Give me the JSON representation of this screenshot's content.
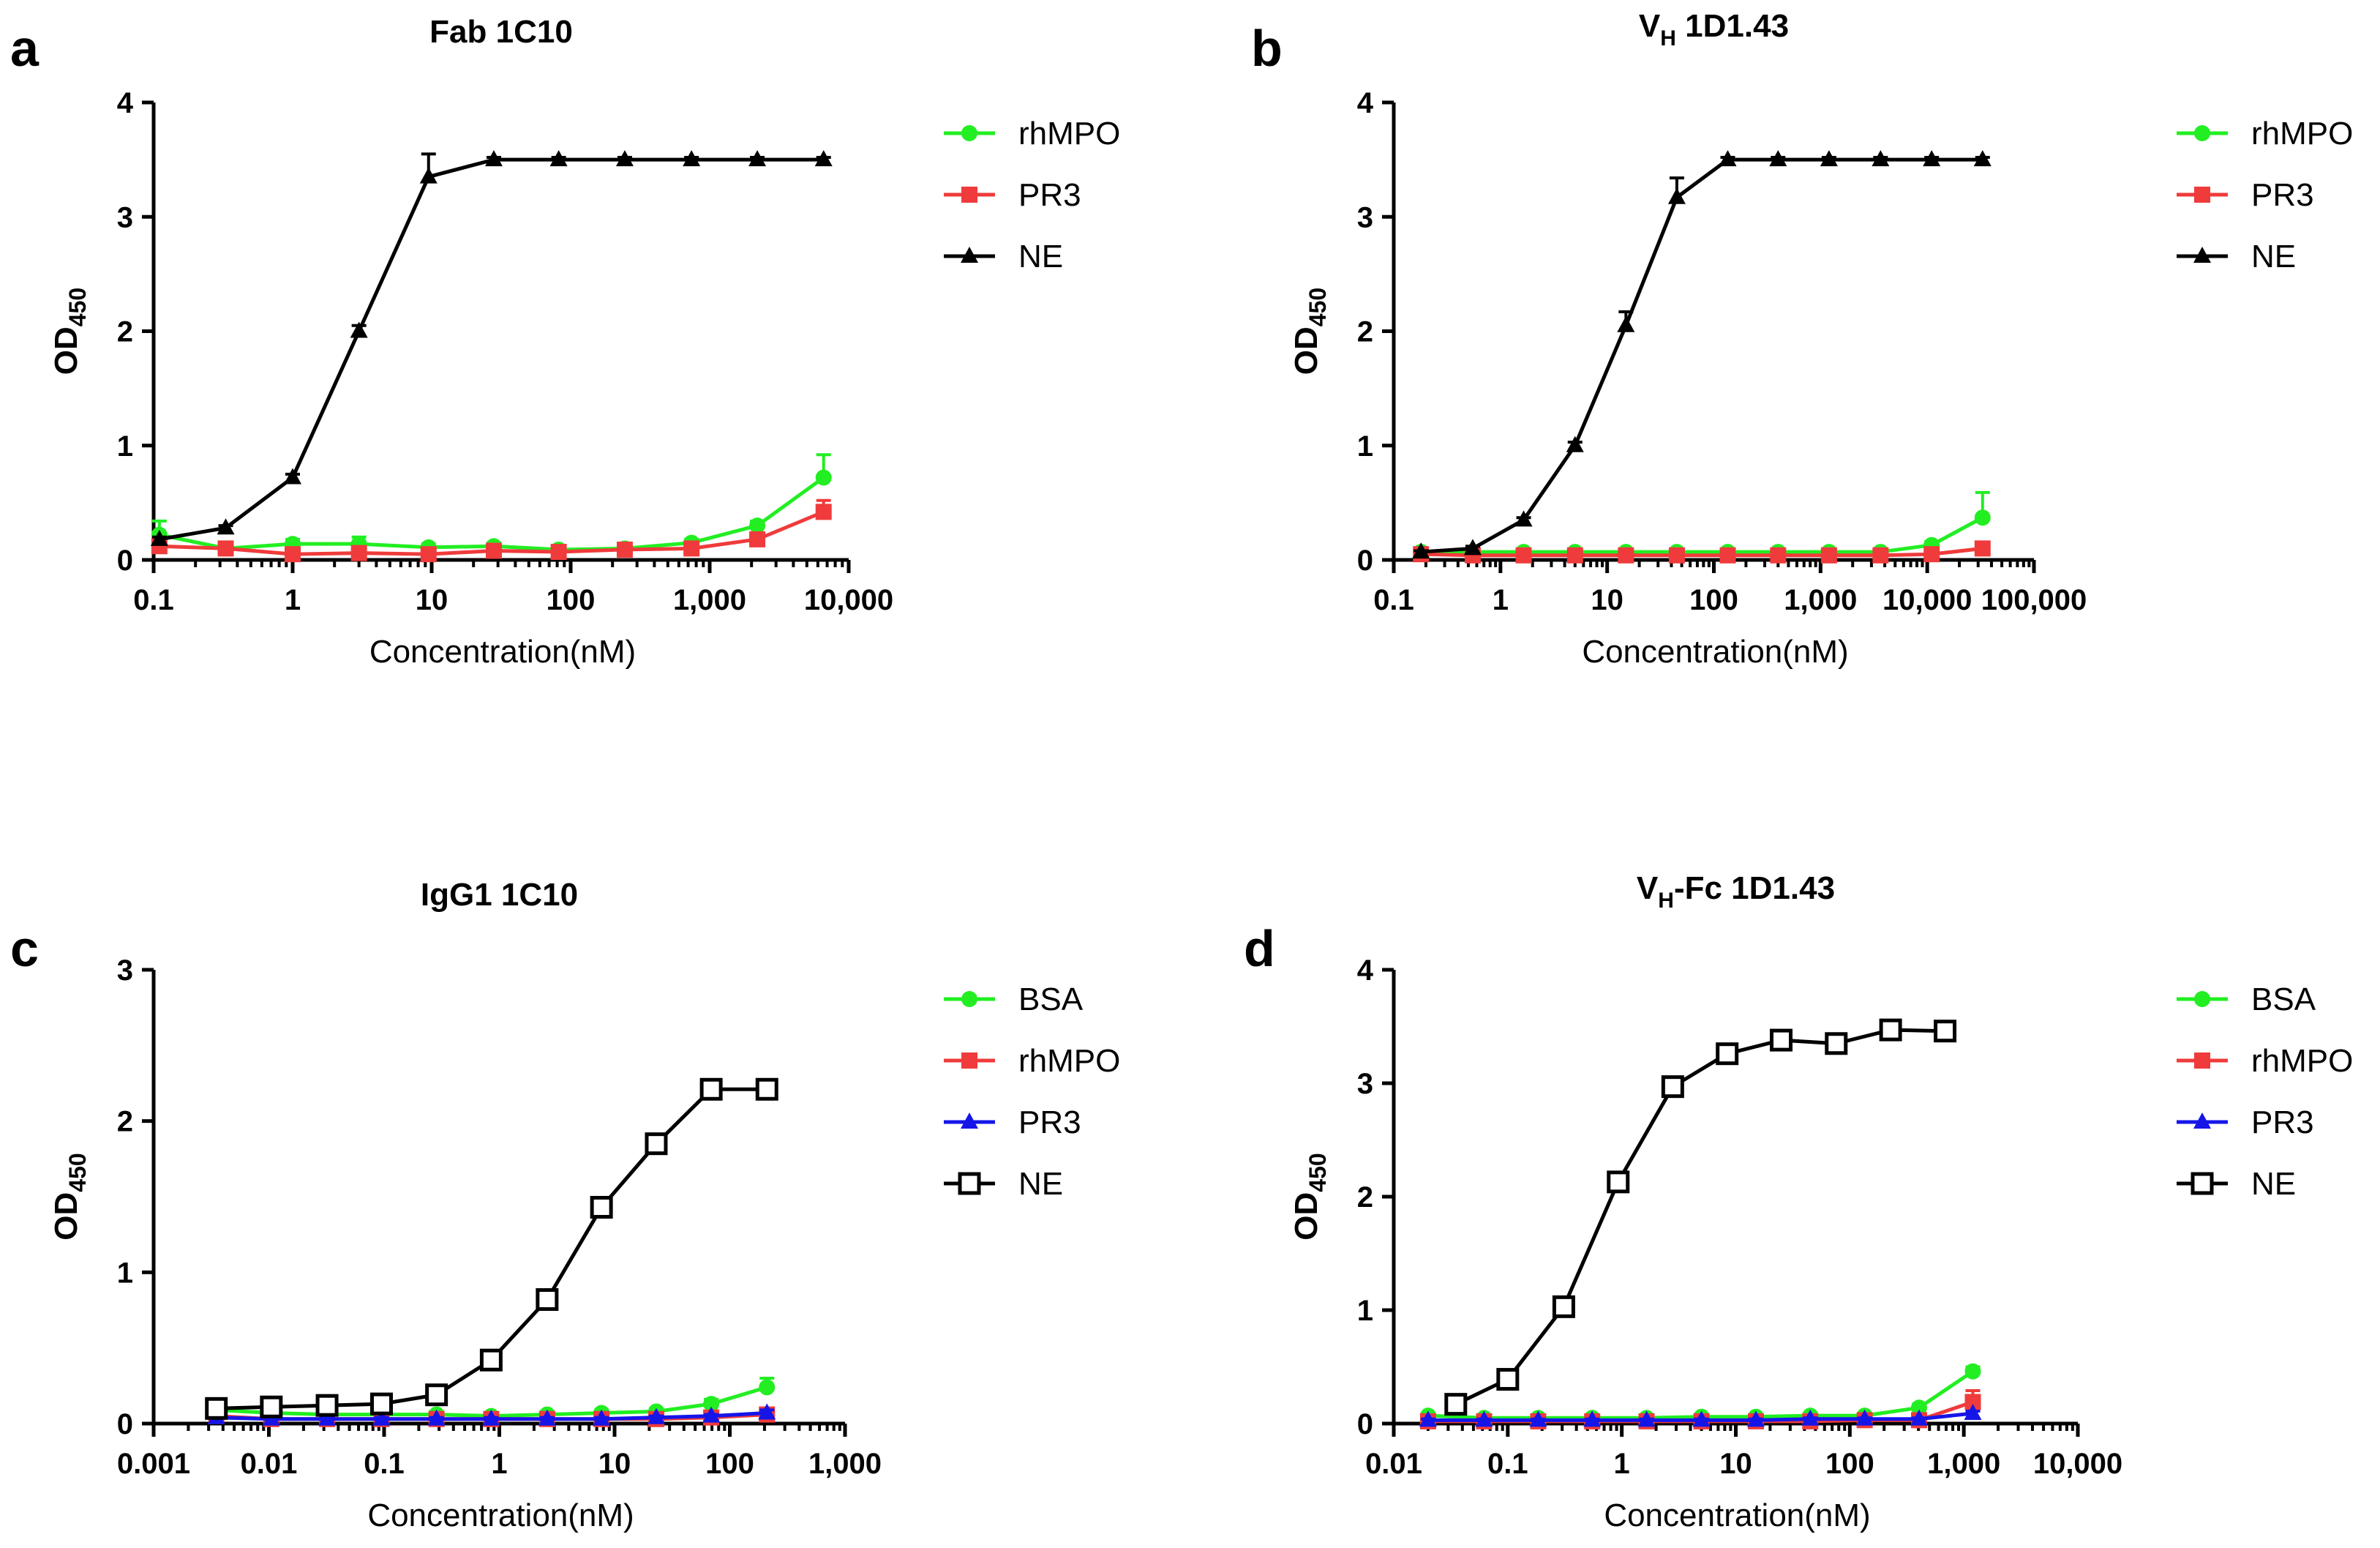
{
  "panels": [
    {
      "letter": "a",
      "title": "Fab 1C10",
      "title_sub": "",
      "title_suffix": "",
      "ylabel": "OD",
      "ylabel_sub": "450",
      "xlabel": "Concentration(nM)"
    },
    {
      "letter": "b",
      "title": "V",
      "title_sub": "H",
      "title_suffix": " 1D1.43",
      "ylabel": "OD",
      "ylabel_sub": "450",
      "xlabel": "Concentration(nM)"
    },
    {
      "letter": "c",
      "title": "IgG1 1C10",
      "title_sub": "",
      "title_suffix": "",
      "ylabel": "OD",
      "ylabel_sub": "450",
      "xlabel": "Concentration(nM)"
    },
    {
      "letter": "d",
      "title": "V",
      "title_sub": "H",
      "title_suffix": "-Fc 1D1.43",
      "ylabel": "OD",
      "ylabel_sub": "450",
      "xlabel": "Concentration(nM)"
    }
  ],
  "chart_data": [
    {
      "type": "line",
      "title": "Fab 1C10",
      "xlabel": "Concentration(nM)",
      "ylabel": "OD450",
      "x_scale": "log",
      "xlim": [
        0.1,
        10000
      ],
      "ylim": [
        0,
        4
      ],
      "xticks": [
        0.1,
        1,
        10,
        100,
        1000,
        10000
      ],
      "xtick_labels": [
        "0.1",
        "1",
        "10",
        "100",
        "1,000",
        "10,000"
      ],
      "yticks": [
        0,
        1,
        2,
        3,
        4
      ],
      "ytick_labels": [
        "0",
        "1",
        "2",
        "3",
        "4"
      ],
      "legend": "right",
      "series": [
        {
          "name": "rhMPO",
          "color": "#22ee22",
          "marker": "circle",
          "x": [
            0.11,
            0.33,
            1,
            3,
            9.5,
            28,
            82,
            245,
            740,
            2200,
            6600
          ],
          "y": [
            0.22,
            0.1,
            0.14,
            0.14,
            0.11,
            0.12,
            0.09,
            0.1,
            0.15,
            0.3,
            0.72
          ],
          "err": [
            0.12,
            0.05,
            0.04,
            0.06,
            0.03,
            0.03,
            0.03,
            0.03,
            0.03,
            0.04,
            0.2
          ]
        },
        {
          "name": "PR3",
          "color": "#ef3b3b",
          "marker": "square",
          "x": [
            0.11,
            0.33,
            1,
            3,
            9.5,
            28,
            82,
            245,
            740,
            2200,
            6600
          ],
          "y": [
            0.12,
            0.1,
            0.05,
            0.06,
            0.05,
            0.08,
            0.07,
            0.09,
            0.1,
            0.18,
            0.42
          ],
          "err": [
            0.04,
            0.03,
            0.02,
            0.02,
            0.02,
            0.02,
            0.02,
            0.02,
            0.02,
            0.03,
            0.1
          ]
        },
        {
          "name": "NE",
          "color": "#000000",
          "marker": "triangle",
          "x": [
            0.11,
            0.33,
            1,
            3,
            9.5,
            28,
            82,
            245,
            740,
            2200,
            6600
          ],
          "y": [
            0.18,
            0.28,
            0.72,
            2.0,
            3.35,
            3.5,
            3.5,
            3.5,
            3.5,
            3.5,
            3.5
          ],
          "err": [
            0.02,
            0.02,
            0.03,
            0.05,
            0.2,
            0.02,
            0.02,
            0.02,
            0.02,
            0.02,
            0.02
          ]
        }
      ]
    },
    {
      "type": "line",
      "title": "VH 1D1.43",
      "xlabel": "Concentration(nM)",
      "ylabel": "OD450",
      "x_scale": "log",
      "xlim": [
        0.1,
        100000
      ],
      "ylim": [
        0,
        4
      ],
      "xticks": [
        0.1,
        1,
        10,
        100,
        1000,
        10000,
        100000
      ],
      "xtick_labels": [
        "0.1",
        "1",
        "10",
        "100",
        "1,000",
        "10,000",
        "100,000"
      ],
      "yticks": [
        0,
        1,
        2,
        3,
        4
      ],
      "ytick_labels": [
        "0",
        "1",
        "2",
        "3",
        "4"
      ],
      "legend": "right",
      "series": [
        {
          "name": "rhMPO",
          "color": "#22ee22",
          "marker": "circle",
          "x": [
            0.18,
            0.55,
            1.65,
            5,
            15,
            45,
            135,
            400,
            1200,
            3650,
            11000,
            33000
          ],
          "y": [
            0.07,
            0.07,
            0.07,
            0.07,
            0.07,
            0.07,
            0.07,
            0.07,
            0.07,
            0.07,
            0.13,
            0.37
          ],
          "err": [
            0.02,
            0.02,
            0.02,
            0.02,
            0.02,
            0.02,
            0.02,
            0.02,
            0.02,
            0.02,
            0.03,
            0.22
          ]
        },
        {
          "name": "PR3",
          "color": "#ef3b3b",
          "marker": "square",
          "x": [
            0.18,
            0.55,
            1.65,
            5,
            15,
            45,
            135,
            400,
            1200,
            3650,
            11000,
            33000
          ],
          "y": [
            0.05,
            0.04,
            0.04,
            0.04,
            0.04,
            0.04,
            0.04,
            0.04,
            0.04,
            0.04,
            0.05,
            0.1
          ],
          "err": [
            0.01,
            0.01,
            0.01,
            0.01,
            0.01,
            0.01,
            0.01,
            0.01,
            0.01,
            0.01,
            0.02,
            0.04
          ]
        },
        {
          "name": "NE",
          "color": "#000000",
          "marker": "triangle",
          "x": [
            0.18,
            0.55,
            1.65,
            5,
            15,
            45,
            135,
            400,
            1200,
            3650,
            11000,
            33000
          ],
          "y": [
            0.07,
            0.1,
            0.35,
            1.0,
            2.05,
            3.17,
            3.5,
            3.5,
            3.5,
            3.5,
            3.5,
            3.5
          ],
          "err": [
            0.01,
            0.02,
            0.02,
            0.03,
            0.12,
            0.17,
            0.02,
            0.02,
            0.02,
            0.02,
            0.02,
            0.02
          ]
        }
      ]
    },
    {
      "type": "line",
      "title": "IgG1 1C10",
      "xlabel": "Concentration(nM)",
      "ylabel": "OD450",
      "x_scale": "log",
      "xlim": [
        0.001,
        1000
      ],
      "ylim": [
        0,
        3
      ],
      "xticks": [
        0.001,
        0.01,
        0.1,
        1,
        10,
        100,
        1000
      ],
      "xtick_labels": [
        "0.001",
        "0.01",
        "0.1",
        "1",
        "10",
        "100",
        "1,000"
      ],
      "yticks": [
        0,
        1,
        2,
        3
      ],
      "ytick_labels": [
        "0",
        "1",
        "2",
        "3"
      ],
      "legend": "right",
      "series": [
        {
          "name": "BSA",
          "color": "#22ee22",
          "marker": "circle",
          "x": [
            0.0035,
            0.0105,
            0.032,
            0.095,
            0.285,
            0.85,
            2.6,
            7.7,
            23,
            69,
            210
          ],
          "y": [
            0.09,
            0.07,
            0.06,
            0.06,
            0.06,
            0.05,
            0.06,
            0.07,
            0.08,
            0.13,
            0.24
          ],
          "err": [
            0.02,
            0.02,
            0.02,
            0.02,
            0.02,
            0.02,
            0.02,
            0.02,
            0.02,
            0.03,
            0.06
          ]
        },
        {
          "name": "rhMPO",
          "color": "#ef3b3b",
          "marker": "square",
          "x": [
            0.0035,
            0.0105,
            0.032,
            0.095,
            0.285,
            0.85,
            2.6,
            7.7,
            23,
            69,
            210
          ],
          "y": [
            0.05,
            0.03,
            0.03,
            0.03,
            0.03,
            0.03,
            0.03,
            0.03,
            0.03,
            0.04,
            0.06
          ],
          "err": [
            0.01,
            0.01,
            0.01,
            0.01,
            0.01,
            0.01,
            0.01,
            0.01,
            0.01,
            0.01,
            0.02
          ]
        },
        {
          "name": "PR3",
          "color": "#1515e8",
          "marker": "triangle",
          "x": [
            0.0035,
            0.0105,
            0.032,
            0.095,
            0.285,
            0.85,
            2.6,
            7.7,
            23,
            69,
            210
          ],
          "y": [
            0.04,
            0.03,
            0.03,
            0.03,
            0.03,
            0.03,
            0.03,
            0.03,
            0.04,
            0.05,
            0.07
          ],
          "err": [
            0.01,
            0.01,
            0.01,
            0.01,
            0.01,
            0.01,
            0.01,
            0.01,
            0.01,
            0.01,
            0.02
          ]
        },
        {
          "name": "NE",
          "color": "#000000",
          "marker": "open-square",
          "x": [
            0.0035,
            0.0105,
            0.032,
            0.095,
            0.285,
            0.85,
            2.6,
            7.7,
            23,
            69,
            210
          ],
          "y": [
            0.1,
            0.11,
            0.12,
            0.13,
            0.19,
            0.42,
            0.82,
            1.43,
            1.85,
            2.21,
            2.21
          ],
          "err": [
            0.01,
            0.01,
            0.01,
            0.01,
            0.02,
            0.02,
            0.03,
            0.03,
            0.03,
            0.03,
            0.03
          ]
        }
      ]
    },
    {
      "type": "line",
      "title": "VH-Fc 1D1.43",
      "xlabel": "Concentration(nM)",
      "ylabel": "OD450",
      "x_scale": "log",
      "xlim": [
        0.01,
        10000
      ],
      "ylim": [
        0,
        4
      ],
      "xticks": [
        0.01,
        0.1,
        1,
        10,
        100,
        1000,
        10000
      ],
      "xtick_labels": [
        "0.01",
        "0.1",
        "1",
        "10",
        "100",
        "1,000",
        "10,000"
      ],
      "yticks": [
        0,
        1,
        2,
        3,
        4
      ],
      "ytick_labels": [
        "0",
        "1",
        "2",
        "3",
        "4"
      ],
      "legend": "right",
      "series": [
        {
          "name": "BSA",
          "color": "#22ee22",
          "marker": "circle",
          "x": [
            0.02,
            0.062,
            0.185,
            0.55,
            1.65,
            5,
            15,
            45,
            135,
            405,
            1200
          ],
          "y": [
            0.07,
            0.05,
            0.05,
            0.05,
            0.05,
            0.06,
            0.06,
            0.07,
            0.07,
            0.14,
            0.46
          ],
          "err": [
            0.02,
            0.02,
            0.02,
            0.02,
            0.02,
            0.02,
            0.02,
            0.02,
            0.02,
            0.03,
            0.04
          ]
        },
        {
          "name": "rhMPO",
          "color": "#ef3b3b",
          "marker": "square",
          "x": [
            0.02,
            0.062,
            0.185,
            0.55,
            1.65,
            5,
            15,
            45,
            135,
            405,
            1200
          ],
          "y": [
            0.02,
            0.02,
            0.02,
            0.02,
            0.02,
            0.02,
            0.02,
            0.02,
            0.03,
            0.03,
            0.19
          ],
          "err": [
            0.01,
            0.01,
            0.01,
            0.01,
            0.01,
            0.01,
            0.01,
            0.01,
            0.01,
            0.01,
            0.1
          ]
        },
        {
          "name": "PR3",
          "color": "#1515e8",
          "marker": "triangle",
          "x": [
            0.02,
            0.062,
            0.185,
            0.55,
            1.65,
            5,
            15,
            45,
            135,
            405,
            1200
          ],
          "y": [
            0.03,
            0.03,
            0.03,
            0.03,
            0.03,
            0.03,
            0.03,
            0.04,
            0.04,
            0.04,
            0.09
          ],
          "err": [
            0.01,
            0.01,
            0.01,
            0.01,
            0.01,
            0.01,
            0.01,
            0.01,
            0.01,
            0.01,
            0.02
          ]
        },
        {
          "name": "NE",
          "color": "#000000",
          "marker": "open-square",
          "x": [
            0.035,
            0.1,
            0.31,
            0.93,
            2.8,
            8.4,
            25,
            76,
            228,
            685
          ],
          "y": [
            0.17,
            0.39,
            1.03,
            2.13,
            2.97,
            3.26,
            3.38,
            3.35,
            3.47,
            3.46
          ],
          "err": [
            0.01,
            0.01,
            0.06,
            0.03,
            0.03,
            0.03,
            0.03,
            0.03,
            0.03,
            0.03
          ]
        }
      ]
    }
  ]
}
